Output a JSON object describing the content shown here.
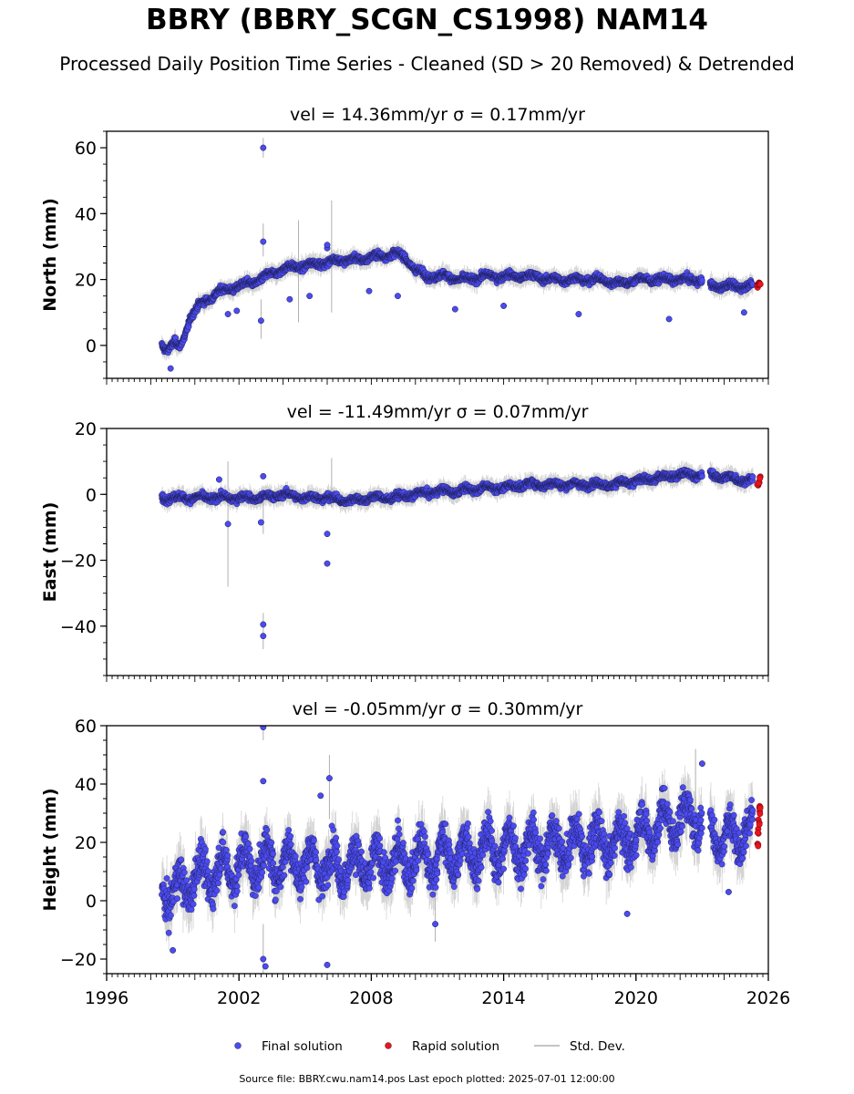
{
  "title": "BBRY (BBRY_SCGN_CS1998) NAM14",
  "subtitle": "Processed Daily Position Time Series - Cleaned (SD > 20 Removed) & Detrended",
  "footer": "Source file: BBRY.cwu.nam14.pos  Last epoch plotted: 2025-07-01 12:00:00",
  "colors": {
    "final": "#4b4bf0",
    "rapid": "#e8141e",
    "std": "#b0b0b0"
  },
  "legend": [
    {
      "label": "Final solution",
      "marker": "dot",
      "color": "#4b4bf0"
    },
    {
      "label": "Rapid solution",
      "marker": "dot",
      "color": "#e8141e"
    },
    {
      "label": "Std. Dev.",
      "marker": "line",
      "color": "#b0b0b0"
    }
  ],
  "chart_data": [
    {
      "type": "scatter",
      "panel": "north",
      "title": "vel = 14.36mm/yr   σ = 0.17mm/yr",
      "ylabel": "North (mm)",
      "xlim": [
        1996,
        2026
      ],
      "ylim": [
        -10,
        65
      ],
      "yticks": [
        0,
        20,
        40,
        60
      ],
      "xticks": [],
      "series": [
        {
          "name": "Final solution",
          "x": [
            1998.5,
            1998.7,
            1998.9,
            1999.1,
            1999.3,
            1999.5,
            1999.8,
            2000.2,
            2000.6,
            2001.0,
            2001.5,
            2002.0,
            2002.5,
            2003.0,
            2003.5,
            2004.0,
            2004.5,
            2005.0,
            2005.5,
            2006.0,
            2006.5,
            2007.0,
            2007.5,
            2008.0,
            2008.5,
            2009.0,
            2009.5,
            2010.0,
            2010.5,
            2011.0,
            2011.5,
            2012.0,
            2012.5,
            2013.0,
            2013.5,
            2014.0,
            2014.5,
            2015.0,
            2015.5,
            2016.0,
            2016.5,
            2017.0,
            2017.5,
            2018.0,
            2018.5,
            2019.0,
            2019.5,
            2020.0,
            2020.5,
            2021.0,
            2021.5,
            2022.0,
            2022.5,
            2022.9,
            2023.5,
            2024.0,
            2024.5,
            2025.0,
            2025.3
          ],
          "y": [
            0,
            -1,
            0,
            1,
            -1,
            2,
            9,
            12,
            14,
            16,
            17,
            18,
            19,
            20,
            22,
            23,
            24,
            24,
            25,
            25,
            26,
            26,
            26,
            27,
            27,
            28,
            27,
            23,
            21,
            21,
            21,
            20,
            20,
            21,
            21,
            21,
            21,
            21,
            21,
            20,
            20,
            20,
            20,
            20,
            20,
            19,
            19,
            20,
            20,
            20,
            20,
            20,
            20,
            20,
            18,
            18,
            18,
            18,
            18
          ],
          "outliers": [
            [
              2003.1,
              60
            ],
            [
              2003.1,
              31.5
            ],
            [
              2003.0,
              7.5
            ],
            [
              2001.5,
              9.5
            ],
            [
              2001.9,
              10.5
            ],
            [
              2004.3,
              14
            ],
            [
              2005.2,
              15
            ],
            [
              2007.9,
              16.5
            ],
            [
              2009.2,
              15
            ],
            [
              2011.8,
              11
            ],
            [
              2014.0,
              12
            ],
            [
              2017.4,
              9.5
            ],
            [
              2021.5,
              8
            ],
            [
              2024.9,
              10
            ],
            [
              1998.9,
              -7
            ],
            [
              2006.0,
              29.5
            ],
            [
              2006.0,
              30.5
            ]
          ],
          "error_bars": [
            [
              2003.1,
              57,
              63
            ],
            [
              2003.1,
              27,
              37
            ],
            [
              2006.2,
              10,
              44
            ],
            [
              2004.7,
              7,
              38
            ],
            [
              2003.0,
              2,
              14
            ]
          ]
        },
        {
          "name": "Rapid solution",
          "x": [
            2025.5,
            2025.55,
            2025.6
          ],
          "y": [
            18,
            19,
            18.5
          ]
        }
      ]
    },
    {
      "type": "scatter",
      "panel": "east",
      "title": "vel = -11.49mm/yr   σ = 0.07mm/yr",
      "ylabel": "East (mm)",
      "xlim": [
        1996,
        2026
      ],
      "ylim": [
        -55,
        20
      ],
      "yticks": [
        -40,
        -20,
        0,
        20
      ],
      "xticks": [],
      "series": [
        {
          "name": "Final solution",
          "x": [
            1998.5,
            1999.0,
            2000.0,
            2001.0,
            2002.0,
            2003.0,
            2004.0,
            2005.0,
            2006.0,
            2007.0,
            2008.0,
            2009.0,
            2010.0,
            2011.0,
            2012.0,
            2013.0,
            2014.0,
            2015.0,
            2016.0,
            2017.0,
            2018.0,
            2019.0,
            2020.0,
            2021.0,
            2022.0,
            2022.9,
            2023.5,
            2024.0,
            2024.5,
            2025.0,
            2025.3
          ],
          "y": [
            -1,
            -1,
            -1,
            -1,
            -1,
            -1,
            0,
            -1,
            -1,
            -2,
            -1,
            -1,
            0,
            1,
            1,
            2,
            2,
            3,
            3,
            3,
            3,
            3,
            4,
            5,
            6,
            6,
            6,
            5,
            5,
            4,
            4
          ],
          "outliers": [
            [
              2003.1,
              -39.5
            ],
            [
              2003.1,
              -43
            ],
            [
              2006.0,
              -12
            ],
            [
              2006.0,
              -21
            ],
            [
              2001.5,
              -9
            ],
            [
              2003.0,
              -8.5
            ],
            [
              2001.1,
              4.5
            ],
            [
              2003.1,
              5.5
            ]
          ],
          "error_bars": [
            [
              2001.5,
              -28,
              10
            ],
            [
              2003.1,
              -47,
              -36
            ],
            [
              2006.2,
              -4,
              11
            ],
            [
              2003.1,
              -12,
              0
            ]
          ]
        },
        {
          "name": "Rapid solution",
          "x": [
            2025.5,
            2025.55,
            2025.6
          ],
          "y": [
            3,
            4,
            5
          ]
        }
      ]
    },
    {
      "type": "scatter",
      "panel": "height",
      "title": "vel = -0.05mm/yr   σ = 0.30mm/yr",
      "ylabel": "Height (mm)",
      "xlim": [
        1996,
        2026
      ],
      "ylim": [
        -25,
        60
      ],
      "yticks": [
        -20,
        0,
        20,
        40,
        60
      ],
      "xticks": [
        "1996",
        "2002",
        "2008",
        "2014",
        "2020",
        "2026"
      ],
      "series": [
        {
          "name": "Final solution",
          "x": [
            1998.5,
            1999.0,
            2000.0,
            2001.0,
            2002.0,
            2003.0,
            2004.0,
            2005.0,
            2006.0,
            2007.0,
            2008.0,
            2009.0,
            2010.0,
            2011.0,
            2012.0,
            2013.0,
            2014.0,
            2015.0,
            2016.0,
            2017.0,
            2018.0,
            2019.0,
            2020.0,
            2021.0,
            2022.0,
            2022.9,
            2023.5,
            2024.0,
            2024.5,
            2025.0,
            2025.3
          ],
          "y": [
            5,
            2,
            8,
            10,
            12,
            13,
            13,
            13,
            12,
            12,
            12,
            13,
            14,
            15,
            16,
            17,
            18,
            18,
            19,
            19,
            20,
            20,
            22,
            26,
            28,
            29,
            24,
            22,
            22,
            24,
            24
          ],
          "outliers": [
            [
              2003.1,
              59.5
            ],
            [
              2003.1,
              41
            ],
            [
              2006.1,
              42
            ],
            [
              2006.0,
              -22
            ],
            [
              2003.2,
              -22.5
            ],
            [
              2003.1,
              -20
            ],
            [
              2005.7,
              36
            ],
            [
              2023.0,
              47
            ],
            [
              2024.2,
              3
            ],
            [
              2019.6,
              -4.5
            ],
            [
              2010.9,
              -8
            ],
            [
              1999.0,
              -17
            ]
          ],
          "error_bars": [
            [
              2003.1,
              55,
              63
            ],
            [
              2006.1,
              28,
              50
            ],
            [
              2003.1,
              -25,
              -8
            ],
            [
              2022.7,
              30,
              52
            ],
            [
              2010.9,
              -14,
              4
            ]
          ]
        },
        {
          "name": "Rapid solution",
          "x": [
            2025.5,
            2025.52,
            2025.55,
            2025.58,
            2025.6
          ],
          "y": [
            19,
            24,
            27,
            30,
            33
          ]
        }
      ]
    }
  ]
}
